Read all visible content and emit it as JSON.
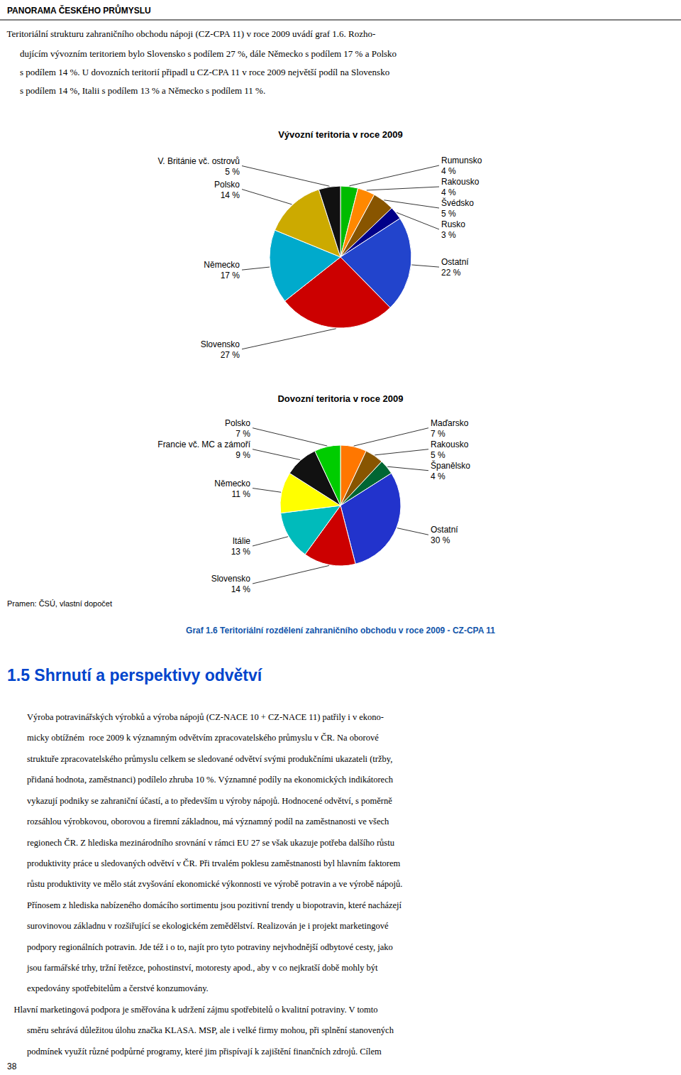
{
  "header": "PANORAMA ČESKÉHO PRŮMYSLU",
  "intro_lines": [
    "   Teritoriální strukturu zahraničního obchodu nápoji (CZ-CPA 11) v roce 2009 uvádí graf 1.6. Rozho-",
    "dujícím vývozním teritoriem bylo Slovensko s podílem 27 %, dále Německo s podílem 17 % a Polsko",
    "s podílem 14 %. U dovozních teritorií připadl u CZ-CPA 11 v roce 2009 největší podíl na Slovensko",
    "s podílem 14 %, Italii s podílem 13 % a Německo s podílem 11 %."
  ],
  "chart_data": [
    {
      "type": "pie",
      "title": "Vývozní teritoria v roce 2009",
      "categories": [
        "Rumunsko",
        "Rakousko",
        "Švédsko",
        "Rusko",
        "Ostatní",
        "Slovensko",
        "Německo",
        "Polsko",
        "V. Británie vč. ostrovů"
      ],
      "values": [
        4,
        4,
        5,
        3,
        22,
        27,
        17,
        14,
        5
      ],
      "value_labels": [
        "4 %",
        "4 %",
        "5 %",
        "3 %",
        "22 %",
        "27 %",
        "17 %",
        "14 %",
        "5 %"
      ],
      "colors": [
        "#00bb00",
        "#ff8800",
        "#885500",
        "#000088",
        "#2244cc",
        "#cc0000",
        "#00aacc",
        "#ccaa00",
        "#111111"
      ],
      "data_labels": true
    },
    {
      "type": "pie",
      "title": "Dovozní teritoria v roce 2009",
      "categories": [
        "Maďarsko",
        "Rakousko",
        "Španělsko",
        "Ostatní",
        "Slovensko",
        "Itálie",
        "Německo",
        "Francie vč. MC a zámoří",
        "Polsko"
      ],
      "values": [
        7,
        5,
        4,
        30,
        14,
        13,
        11,
        9,
        7
      ],
      "value_labels": [
        "7 %",
        "5 %",
        "4 %",
        "30 %",
        "14 %",
        "13 %",
        "11 %",
        "9 %",
        "7 %"
      ],
      "colors": [
        "#ff7700",
        "#885500",
        "#006633",
        "#2233cc",
        "#cc0000",
        "#00bbbb",
        "#ffff00",
        "#111111",
        "#00cc00"
      ],
      "data_labels": true
    }
  ],
  "caption": "Pramen: ČSÚ, vlastní dopočet",
  "figure_label": "Graf 1.6 Teritoriální rozdělení zahraničního obchodu v roce 2009 - CZ-CPA 11",
  "section_title": "1.5 Shrnutí a perspektivy odvětví",
  "body_lines": [
    "Výroba potravinářských výrobků a výroba nápojů (CZ-NACE 10 + CZ-NACE 11) patřily i v ekono-",
    "micky obtížném  roce 2009 k významným odvětvím zpracovatelského průmyslu v ČR. Na oborové",
    "struktuře zpracovatelského průmyslu celkem se sledované odvětví svými produkčními ukazateli (tržby,",
    "přidaná hodnota, zaměstnanci) podílelo zhruba 10 %. Významné podíly na ekonomických indikátorech",
    "vykazují podniky se zahraniční účastí, a to především u výroby nápojů. Hodnocené odvětví, s poměrně",
    "rozsáhlou výrobkovou, oborovou a firemní základnou, má významný podíl na zaměstnanosti ve všech",
    "regionech ČR. Z hlediska mezinárodního srovnání v rámci EU 27 se však ukazuje potřeba dalšího růstu",
    "produktivity práce u sledovaných odvětví v ČR. Při trvalém poklesu zaměstnanosti byl hlavním faktorem",
    "růstu produktivity ve mělo stát zvyšování ekonomické výkonnosti ve výrobě potravin a ve výrobě nápojů.",
    "Přínosem z hlediska nabízeného domácího sortimentu jsou pozitivní trendy u biopotravin, které nacházejí",
    "surovinovou základnu v rozšiřující se ekologickém zemědělství. Realizován je i projekt marketingové",
    "podpory regionálních potravin. Jde též i o to, najít pro tyto potraviny nejvhodnější odbytové cesty, jako",
    "jsou farmářské trhy, tržní řetězce, pohostinství, motoresty apod., aby v co nejkratší době mohly být",
    "expedovány spotřebitelům a čerstvé konzumovány.",
    "   Hlavní marketingová podpora je směřována k udržení zájmu spotřebitelů o kvalitní potraviny. V tomto",
    "směru sehrává důležitou úlohu značka KLASA. MSP, ale i velké firmy mohou, při splnění stanovených",
    "podmínek využít různé podpůrné programy, které jim přispívají k zajištění finančních zdrojů. Cílem"
  ],
  "page_number": "38"
}
